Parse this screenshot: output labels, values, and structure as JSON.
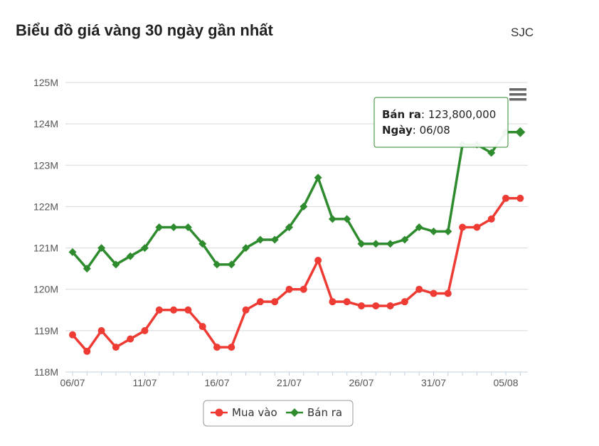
{
  "header": {
    "title": "Biểu đồ giá vàng 30 ngày gần nhất",
    "source": "SJC"
  },
  "menu": {
    "icon": "hamburger-menu-icon"
  },
  "tooltip": {
    "series_label": "Bán ra",
    "series_value": "123,800,000",
    "date_label": "Ngày",
    "date_value": "06/08"
  },
  "legend": {
    "placement": "bottom-center",
    "items": [
      "Mua vào",
      "Bán ra"
    ]
  },
  "chart_data": {
    "type": "line",
    "title": "Biểu đồ giá vàng 30 ngày gần nhất",
    "y_ticks": [
      "118M",
      "119M",
      "120M",
      "121M",
      "122M",
      "123M",
      "124M",
      "125M"
    ],
    "ylim": [
      118,
      125
    ],
    "y_unit": "M",
    "x_ticks": [
      "06/07",
      "11/07",
      "16/07",
      "21/07",
      "26/07",
      "31/07",
      "05/08"
    ],
    "x_tick_indices": [
      0,
      5,
      10,
      15,
      20,
      25,
      30
    ],
    "grid": true,
    "series": [
      {
        "name": "Mua vào",
        "color": "#ee3b34",
        "marker": "circle",
        "values": [
          118.9,
          118.5,
          119.0,
          118.6,
          118.8,
          119.0,
          119.5,
          119.5,
          119.5,
          119.1,
          118.6,
          118.6,
          119.5,
          119.7,
          119.7,
          120.0,
          120.0,
          120.7,
          119.7,
          119.7,
          119.6,
          119.6,
          119.6,
          119.7,
          120.0,
          119.9,
          119.9,
          121.5,
          121.5,
          121.7,
          122.2,
          122.2
        ]
      },
      {
        "name": "Bán ra",
        "color": "#2e8b2e",
        "marker": "diamond",
        "values": [
          120.9,
          120.5,
          121.0,
          120.6,
          120.8,
          121.0,
          121.5,
          121.5,
          121.5,
          121.1,
          120.6,
          120.6,
          121.0,
          121.2,
          121.2,
          121.5,
          122.0,
          122.7,
          121.7,
          121.7,
          121.1,
          121.1,
          121.1,
          121.2,
          121.5,
          121.4,
          121.4,
          123.5,
          123.5,
          123.3,
          123.8,
          123.8
        ]
      }
    ],
    "highlight": {
      "series": "Bán ra",
      "index": 31,
      "value": 123800000,
      "date": "06/08"
    }
  }
}
